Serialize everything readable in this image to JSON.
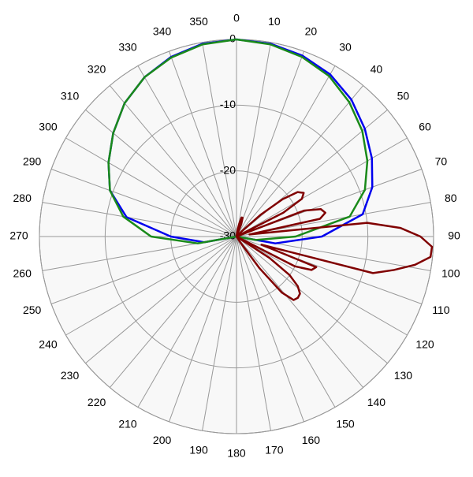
{
  "chart_data": {
    "type": "polar",
    "rlim": [
      -30,
      0
    ],
    "rticks": [
      -30,
      -20,
      -10,
      0
    ],
    "thetaticks": [
      0,
      10,
      20,
      30,
      40,
      50,
      60,
      70,
      80,
      90,
      100,
      110,
      120,
      130,
      140,
      150,
      160,
      170,
      180,
      190,
      200,
      210,
      220,
      230,
      240,
      250,
      260,
      270,
      280,
      290,
      300,
      310,
      320,
      330,
      340,
      350
    ],
    "grid": true,
    "series": [
      {
        "color": "#0000ee",
        "theta": [
          0,
          10,
          20,
          30,
          40,
          50,
          60,
          70,
          80,
          90,
          100,
          110,
          120,
          130,
          140,
          150,
          160,
          170,
          180,
          190,
          200,
          210,
          220,
          230,
          240,
          250,
          260,
          270,
          280,
          290,
          300,
          310,
          320,
          330,
          340,
          350,
          360
        ],
        "values": [
          0,
          -0.2,
          -0.7,
          -1.5,
          -2.8,
          -4.5,
          -6.2,
          -8,
          -10.5,
          -17,
          -24,
          -30,
          -30,
          -30,
          -30,
          -30,
          -30,
          -30,
          -30,
          -30,
          -30,
          -30,
          -30,
          -30,
          -30,
          -30,
          -25,
          -20,
          -13,
          -9.5,
          -7.5,
          -5.5,
          -3.5,
          -2,
          -0.9,
          -0.2,
          0
        ]
      },
      {
        "color": "#1a8a1a",
        "theta": [
          0,
          10,
          20,
          30,
          40,
          50,
          60,
          70,
          80,
          90,
          100,
          110,
          120,
          130,
          140,
          150,
          160,
          170,
          180,
          190,
          200,
          210,
          220,
          230,
          240,
          250,
          260,
          270,
          280,
          290,
          300,
          310,
          320,
          330,
          340,
          350,
          360
        ],
        "values": [
          0,
          -0.3,
          -0.9,
          -1.8,
          -3.3,
          -5,
          -7,
          -9.2,
          -12.5,
          -21,
          -27,
          -30,
          -30,
          -30,
          -30,
          -30,
          -30,
          -30,
          -30,
          -30,
          -30,
          -30,
          -30,
          -30,
          -30,
          -30,
          -24,
          -17,
          -12.5,
          -9.5,
          -7.5,
          -5.5,
          -3.5,
          -2,
          -1,
          -0.3,
          0
        ]
      },
      {
        "color": "#800000",
        "theta": [
          0,
          3,
          6,
          9,
          12,
          15,
          18,
          21,
          24,
          27,
          30,
          33,
          36,
          39,
          42,
          45,
          48,
          51,
          54,
          57,
          60,
          63,
          66,
          69,
          72,
          75,
          78,
          81,
          84,
          87,
          90,
          93,
          96,
          99,
          102,
          105,
          108,
          111,
          114,
          117,
          120,
          123,
          126,
          129,
          132,
          135,
          138,
          141,
          144,
          147,
          150,
          180
        ],
        "values": [
          -30,
          -30,
          -30,
          -29,
          -28,
          -27,
          -27,
          -28,
          -30,
          -30,
          -30,
          -30,
          -30,
          -30,
          -30,
          -29,
          -25,
          -21,
          -18.5,
          -17.8,
          -18.5,
          -22,
          -30,
          -19,
          -16.5,
          -16,
          -17,
          -28,
          -10,
          -5,
          -2,
          -0.2,
          -0.3,
          -2.5,
          -5.5,
          -8.5,
          -26,
          -17,
          -17.5,
          -20,
          -30,
          -24,
          -20,
          -18,
          -17,
          -16.8,
          -17,
          -19,
          -24,
          -29,
          -30,
          -30
        ]
      }
    ]
  }
}
